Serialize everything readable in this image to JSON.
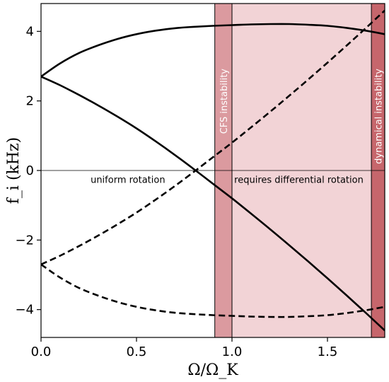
{
  "chart_data": {
    "type": "line",
    "xlabel": "Ω/Ω_K",
    "ylabel": "f_i (kHz)",
    "xlim": [
      0.0,
      1.8
    ],
    "ylim": [
      -4.8,
      4.8
    ],
    "xticks": [
      0.0,
      0.5,
      1.0,
      1.5
    ],
    "xtick_labels": [
      "0.0",
      "0.5",
      "1.0",
      "1.5"
    ],
    "yticks": [
      -4,
      -2,
      0,
      2,
      4
    ],
    "ytick_labels": [
      "−4",
      "−2",
      "0",
      "2",
      "4"
    ],
    "grid": false,
    "bands": [
      {
        "x0": 0.91,
        "x1": 1.8,
        "color": "#f2d3d6",
        "opacity": 1.0,
        "label": ""
      },
      {
        "x0": 0.91,
        "x1": 1.0,
        "color": "#db9a9f",
        "opacity": 1.0,
        "label": "CFS instability"
      },
      {
        "x0": 1.73,
        "x1": 1.8,
        "color": "#c6666c",
        "opacity": 1.0,
        "label": "dynamical instability"
      }
    ],
    "annotations": [
      {
        "text": "uniform rotation",
        "x": 0.455,
        "y": -0.25
      },
      {
        "text": "requires differential rotation",
        "x": 1.35,
        "y": -0.25
      }
    ],
    "series": [
      {
        "style": "solid",
        "x": [
          0.0,
          0.1,
          0.2,
          0.3,
          0.4,
          0.5,
          0.6,
          0.7,
          0.8,
          0.9,
          1.0,
          1.1,
          1.2,
          1.3,
          1.4,
          1.5,
          1.6,
          1.7,
          1.8
        ],
        "y": [
          2.7,
          3.08,
          3.38,
          3.6,
          3.78,
          3.92,
          4.02,
          4.09,
          4.13,
          4.16,
          4.18,
          4.2,
          4.21,
          4.21,
          4.19,
          4.16,
          4.1,
          4.02,
          3.92
        ]
      },
      {
        "style": "solid",
        "x": [
          0.0,
          0.1,
          0.2,
          0.3,
          0.4,
          0.5,
          0.6,
          0.7,
          0.8,
          0.9,
          1.0,
          1.1,
          1.2,
          1.3,
          1.4,
          1.5,
          1.6,
          1.7,
          1.8
        ],
        "y": [
          2.7,
          2.45,
          2.17,
          1.87,
          1.55,
          1.21,
          0.84,
          0.45,
          0.04,
          -0.38,
          -0.8,
          -1.24,
          -1.69,
          -2.15,
          -2.62,
          -3.1,
          -3.59,
          -4.09,
          -4.6
        ]
      },
      {
        "style": "dashed",
        "x": [
          0.0,
          0.1,
          0.2,
          0.3,
          0.4,
          0.5,
          0.6,
          0.7,
          0.8,
          0.9,
          1.0,
          1.1,
          1.2,
          1.3,
          1.4,
          1.5,
          1.6,
          1.7,
          1.8
        ],
        "y": [
          -2.7,
          -2.45,
          -2.17,
          -1.87,
          -1.55,
          -1.21,
          -0.84,
          -0.45,
          -0.04,
          0.38,
          0.8,
          1.24,
          1.69,
          2.15,
          2.62,
          3.1,
          3.59,
          4.09,
          4.6
        ]
      },
      {
        "style": "dashed",
        "x": [
          0.0,
          0.1,
          0.2,
          0.3,
          0.4,
          0.5,
          0.6,
          0.7,
          0.8,
          0.9,
          1.0,
          1.1,
          1.2,
          1.3,
          1.4,
          1.5,
          1.6,
          1.7,
          1.8
        ],
        "y": [
          -2.7,
          -3.08,
          -3.38,
          -3.6,
          -3.78,
          -3.92,
          -4.02,
          -4.09,
          -4.13,
          -4.16,
          -4.18,
          -4.2,
          -4.21,
          -4.21,
          -4.19,
          -4.16,
          -4.1,
          -4.02,
          -3.92
        ]
      }
    ],
    "hline": {
      "y": 0,
      "color": "#000000"
    },
    "line_color": "#000000"
  }
}
